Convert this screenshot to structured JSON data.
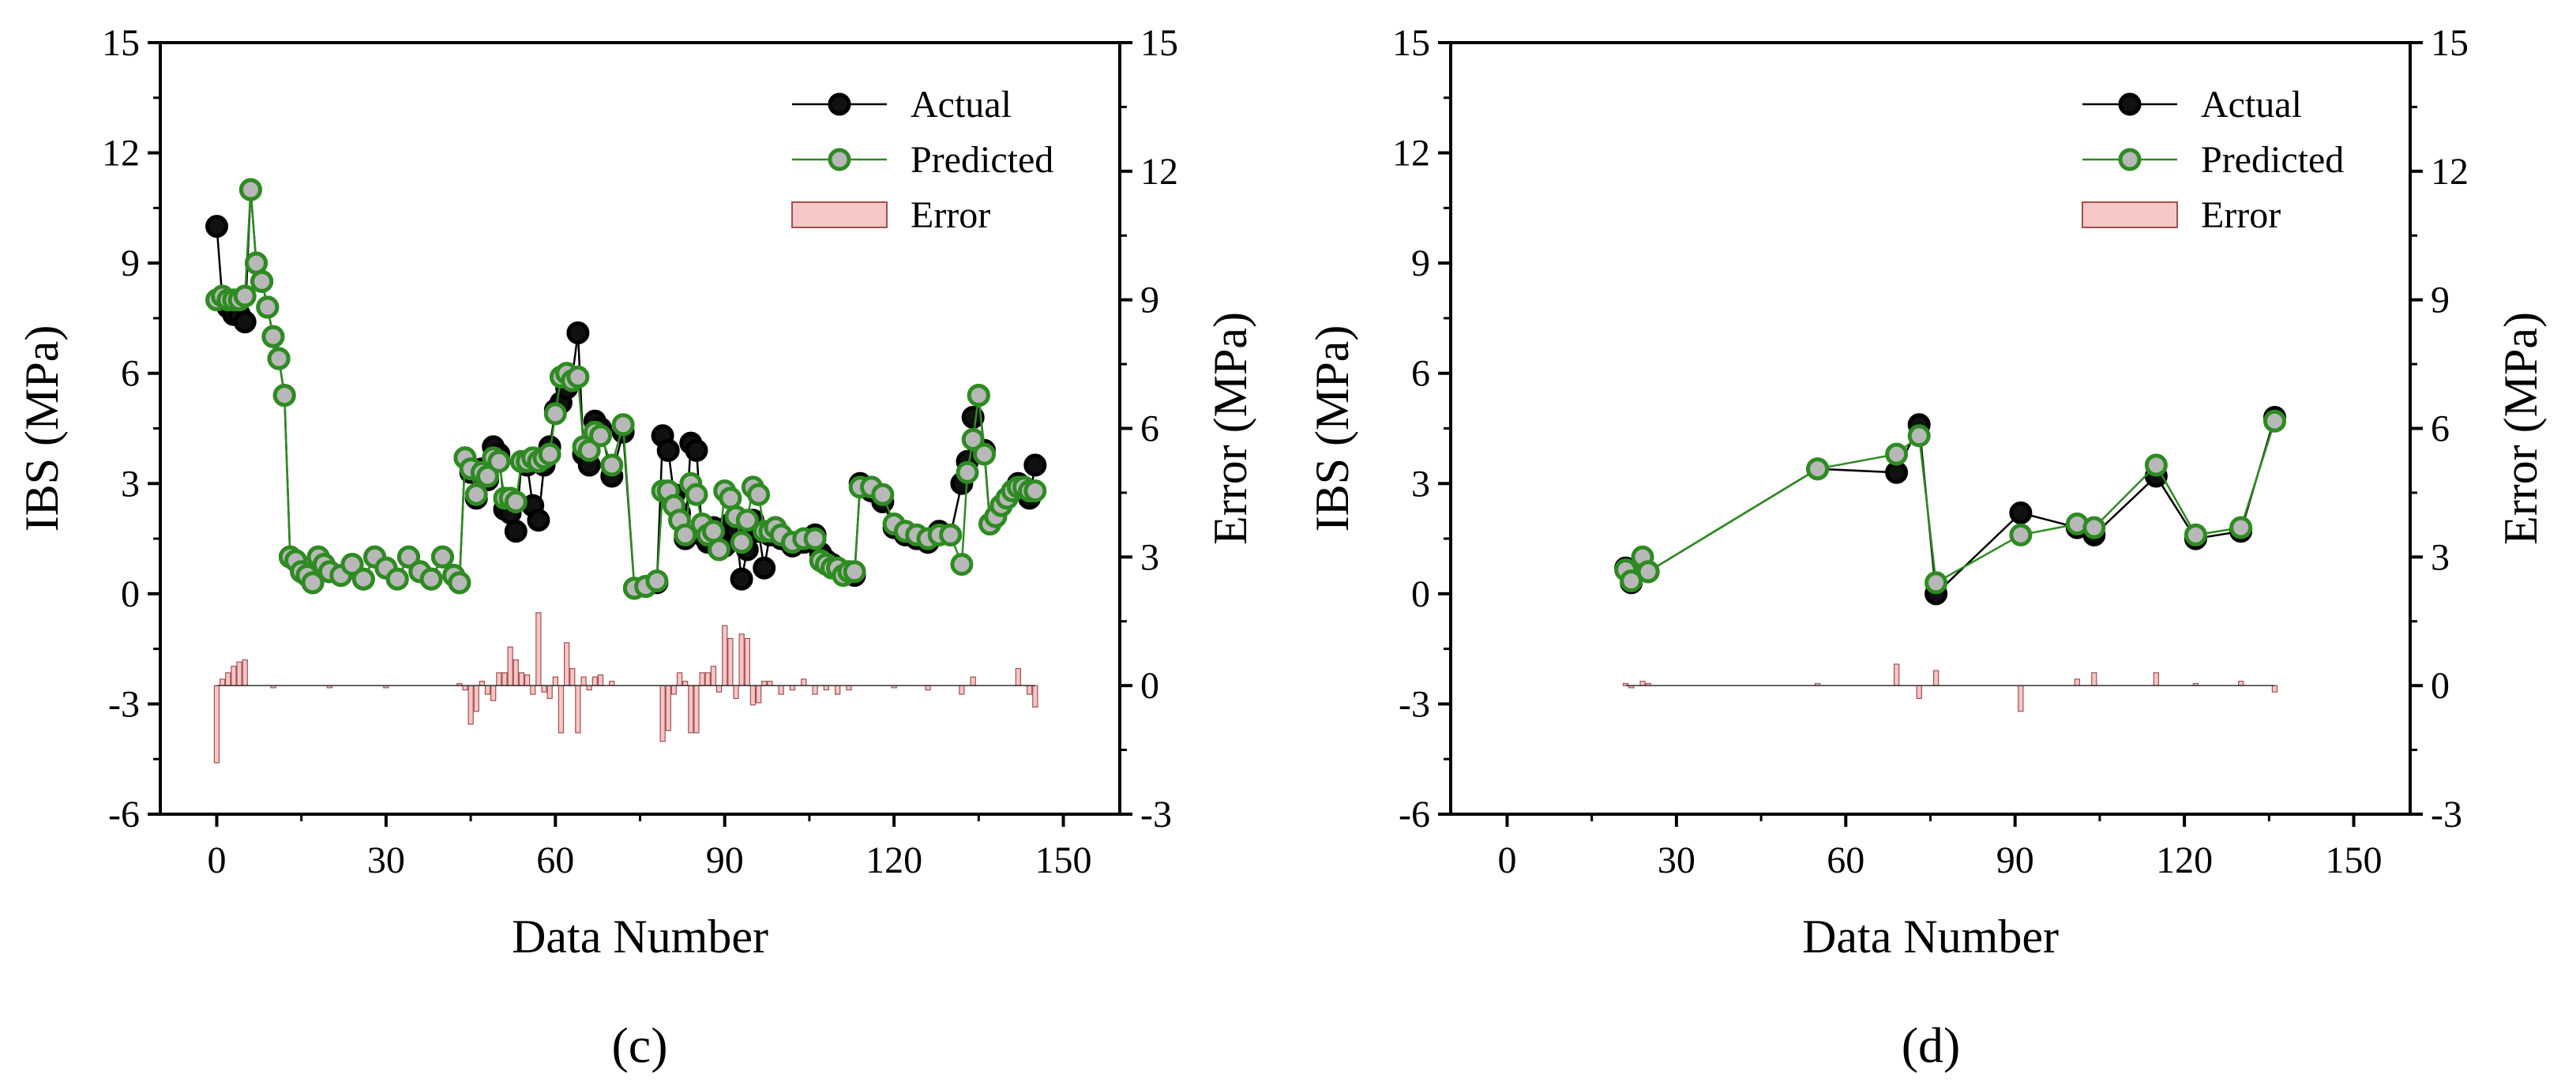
{
  "colors": {
    "actual_fill": "#111111",
    "actual_line": "#000000",
    "predicted_line": "#2e8b22",
    "predicted_fill": "#b8b8b8",
    "predicted_edge": "#2e8b22",
    "error_fill": "#f7c6c6",
    "error_edge": "#a05050"
  },
  "chart_data": [
    {
      "type": "line",
      "panel_label": "(c)",
      "xlabel": "Data Number",
      "ylabel": "IBS (MPa)",
      "y2label": "Error (MPa)",
      "xlim": [
        -10,
        160
      ],
      "ylim": [
        -6,
        15
      ],
      "y2lim": [
        -3,
        15
      ],
      "xticks": [
        0,
        30,
        60,
        90,
        120,
        150
      ],
      "yticks": [
        -6,
        -3,
        0,
        3,
        6,
        9,
        12,
        15
      ],
      "y2ticks": [
        -3,
        0,
        3,
        6,
        9,
        12,
        15
      ],
      "legend": [
        "Actual",
        "Predicted",
        "Error"
      ],
      "legend_position": "top-right",
      "series": [
        {
          "name": "Actual",
          "x": [
            0,
            1,
            2,
            3,
            4,
            5,
            6,
            7,
            8,
            9,
            10,
            11,
            12,
            13,
            14,
            15,
            16,
            17,
            18,
            19,
            20,
            22,
            24,
            26,
            28,
            30,
            32,
            34,
            36,
            38,
            40,
            42,
            43,
            44,
            45,
            46,
            47,
            48,
            49,
            50,
            51,
            52,
            53,
            54,
            55,
            56,
            57,
            58,
            59,
            60,
            61,
            62,
            63,
            64,
            65,
            66,
            67,
            68,
            70,
            72,
            74,
            76,
            78,
            79,
            80,
            81,
            82,
            83,
            84,
            85,
            86,
            87,
            88,
            89,
            90,
            91,
            92,
            93,
            94,
            95,
            96,
            97,
            98,
            99,
            100,
            102,
            104,
            106,
            107,
            108,
            109,
            110,
            111,
            112,
            113,
            114,
            116,
            118,
            120,
            122,
            124,
            126,
            128,
            130,
            132,
            133,
            134,
            135,
            136,
            137,
            138,
            139,
            140,
            141,
            142,
            143,
            144,
            145
          ],
          "values": [
            10,
            8,
            7.8,
            7.6,
            7.6,
            7.4,
            11,
            9,
            8.5,
            7.8,
            7,
            6.4,
            5.4,
            1,
            0.9,
            0.6,
            0.5,
            0.3,
            1,
            0.8,
            0.6,
            0.5,
            0.8,
            0.4,
            1,
            0.7,
            0.4,
            1,
            0.6,
            0.4,
            1,
            0.5,
            0.3,
            3.7,
            3.3,
            2.6,
            3.4,
            3.1,
            4,
            3.8,
            2.3,
            2.2,
            1.7,
            3.6,
            3.5,
            2.4,
            2,
            3.5,
            4,
            5,
            5.2,
            5.6,
            5.9,
            7.1,
            3.8,
            3.5,
            4.7,
            4.5,
            3.2,
            4.4,
            0.15,
            0.2,
            0.3,
            4.3,
            3.9,
            2.7,
            2.2,
            1.5,
            4.1,
            3.9,
            1.6,
            1.4,
            1.8,
            1.2,
            1.3,
            1.9,
            1.7,
            0.4,
            1.2,
            2,
            1.7,
            0.7,
            1.6,
            1.8,
            1.5,
            1.3,
            1.4,
            1.6,
            1.1,
            0.9,
            0.8,
            0.7,
            0.6,
            0.6,
            0.5,
            3,
            2.8,
            2.5,
            1.8,
            1.6,
            1.5,
            1.4,
            1.7,
            1.6,
            3,
            3.6,
            4.8,
            5.4,
            3.9,
            1.9,
            2.1,
            2.4,
            2.6,
            2.8,
            3,
            2.9,
            2.6,
            3.5
          ]
        },
        {
          "name": "Predicted",
          "x": [
            0,
            1,
            2,
            3,
            4,
            5,
            6,
            7,
            8,
            9,
            10,
            11,
            12,
            13,
            14,
            15,
            16,
            17,
            18,
            19,
            20,
            22,
            24,
            26,
            28,
            30,
            32,
            34,
            36,
            38,
            40,
            42,
            43,
            44,
            45,
            46,
            47,
            48,
            49,
            50,
            51,
            52,
            53,
            54,
            55,
            56,
            57,
            58,
            59,
            60,
            61,
            62,
            63,
            64,
            65,
            66,
            67,
            68,
            70,
            72,
            74,
            76,
            78,
            79,
            80,
            81,
            82,
            83,
            84,
            85,
            86,
            87,
            88,
            89,
            90,
            91,
            92,
            93,
            94,
            95,
            96,
            97,
            98,
            99,
            100,
            102,
            104,
            106,
            107,
            108,
            109,
            110,
            111,
            112,
            113,
            114,
            116,
            118,
            120,
            122,
            124,
            126,
            128,
            130,
            132,
            133,
            134,
            135,
            136,
            137,
            138,
            139,
            140,
            141,
            142,
            143,
            144,
            145
          ],
          "values": [
            8,
            8.1,
            8,
            8,
            8,
            8.1,
            11,
            9,
            8.5,
            7.8,
            7,
            6.4,
            5.4,
            1,
            0.9,
            0.6,
            0.5,
            0.3,
            1,
            0.8,
            0.6,
            0.5,
            0.8,
            0.4,
            1,
            0.7,
            0.4,
            1,
            0.6,
            0.4,
            1,
            0.5,
            0.3,
            3.7,
            3.4,
            2.7,
            3.3,
            3.2,
            3.7,
            3.6,
            2.6,
            2.6,
            2.5,
            3.6,
            3.6,
            3.7,
            3.6,
            3.7,
            3.8,
            4.9,
            5.9,
            6,
            5.8,
            5.9,
            4,
            3.9,
            4.4,
            4.3,
            3.5,
            4.6,
            0.15,
            0.2,
            0.35,
            2.8,
            2.8,
            2.4,
            2,
            1.6,
            3,
            2.7,
            1.9,
            1.6,
            1.7,
            1.2,
            2.8,
            2.6,
            2.1,
            1.4,
            2,
            2.9,
            2.7,
            1.7,
            1.7,
            1.8,
            1.6,
            1.4,
            1.5,
            1.5,
            0.9,
            0.8,
            0.7,
            0.7,
            0.5,
            0.6,
            0.6,
            2.9,
            2.9,
            2.7,
            1.9,
            1.7,
            1.6,
            1.5,
            1.6,
            1.6,
            0.8,
            3.3,
            4.2,
            5.4,
            3.8,
            1.9,
            2.1,
            2.4,
            2.6,
            2.8,
            2.9,
            2.9,
            2.8,
            2.8
          ]
        },
        {
          "name": "Error",
          "kind": "bar",
          "axis": "right",
          "x": [
            0,
            1,
            2,
            3,
            4,
            5,
            10,
            20,
            30,
            43,
            44,
            45,
            46,
            47,
            48,
            49,
            50,
            51,
            52,
            53,
            54,
            55,
            56,
            57,
            58,
            59,
            60,
            61,
            62,
            63,
            64,
            65,
            66,
            67,
            68,
            70,
            79,
            80,
            81,
            82,
            83,
            84,
            85,
            86,
            87,
            88,
            89,
            90,
            91,
            92,
            93,
            94,
            95,
            96,
            97,
            98,
            100,
            102,
            104,
            106,
            108,
            110,
            112,
            120,
            126,
            132,
            134,
            142,
            144,
            145
          ],
          "values": [
            -1.8,
            0.15,
            0.3,
            0.45,
            0.55,
            0.6,
            -0.05,
            -0.05,
            -0.05,
            0.05,
            -0.1,
            -0.9,
            -0.6,
            0.1,
            -0.2,
            -0.35,
            0.3,
            0.3,
            0.9,
            0.6,
            0.3,
            0.25,
            -0.2,
            1.7,
            -0.15,
            -0.3,
            0.2,
            -1.1,
            1,
            0.4,
            -1.1,
            0.2,
            -0.1,
            0.2,
            0.25,
            0.1,
            -1.3,
            -1.05,
            -0.2,
            0.3,
            0.1,
            -1.1,
            -1.1,
            0.3,
            0.3,
            0.45,
            -0.15,
            1.4,
            1.1,
            -0.3,
            1.2,
            1.1,
            -0.45,
            -0.4,
            0.1,
            0.1,
            -0.2,
            -0.1,
            0.15,
            -0.2,
            -0.1,
            -0.2,
            -0.1,
            -0.05,
            -0.1,
            -0.2,
            0.2,
            0.4,
            -0.2,
            -0.5
          ]
        }
      ]
    },
    {
      "type": "line",
      "panel_label": "(d)",
      "xlabel": "Data Number",
      "ylabel": "IBS (MPa)",
      "y2label": "Error (MPa)",
      "xlim": [
        -10,
        160
      ],
      "ylim": [
        -6,
        15
      ],
      "y2lim": [
        -3,
        15
      ],
      "xticks": [
        0,
        30,
        60,
        90,
        120,
        150
      ],
      "yticks": [
        -6,
        -3,
        0,
        3,
        6,
        9,
        12,
        15
      ],
      "y2ticks": [
        -3,
        0,
        3,
        6,
        9,
        12,
        15
      ],
      "legend": [
        "Actual",
        "Predicted",
        "Error"
      ],
      "legend_position": "top-right",
      "series": [
        {
          "name": "Actual",
          "x": [
            21,
            22,
            24,
            25,
            55,
            69,
            73,
            76,
            91,
            101,
            104,
            115,
            122,
            130,
            136
          ],
          "values": [
            0.7,
            0.3,
            0.7,
            0.6,
            3.4,
            3.3,
            4.6,
            0.0,
            2.2,
            1.8,
            1.6,
            3.2,
            1.5,
            1.7,
            4.8
          ]
        },
        {
          "name": "Predicted",
          "x": [
            21,
            22,
            24,
            25,
            55,
            69,
            73,
            76,
            91,
            101,
            104,
            115,
            122,
            130,
            136
          ],
          "values": [
            0.65,
            0.35,
            1.0,
            0.6,
            3.4,
            3.8,
            4.3,
            0.3,
            1.6,
            1.9,
            1.8,
            3.5,
            1.6,
            1.8,
            4.7
          ]
        },
        {
          "name": "Error",
          "kind": "bar",
          "axis": "right",
          "x": [
            21,
            22,
            24,
            25,
            55,
            69,
            73,
            76,
            91,
            101,
            104,
            115,
            122,
            130,
            136
          ],
          "values": [
            0.05,
            -0.05,
            0.1,
            0.05,
            0.05,
            0.5,
            -0.3,
            0.35,
            -0.6,
            0.15,
            0.3,
            0.3,
            0.05,
            0.1,
            -0.15
          ]
        }
      ]
    }
  ]
}
